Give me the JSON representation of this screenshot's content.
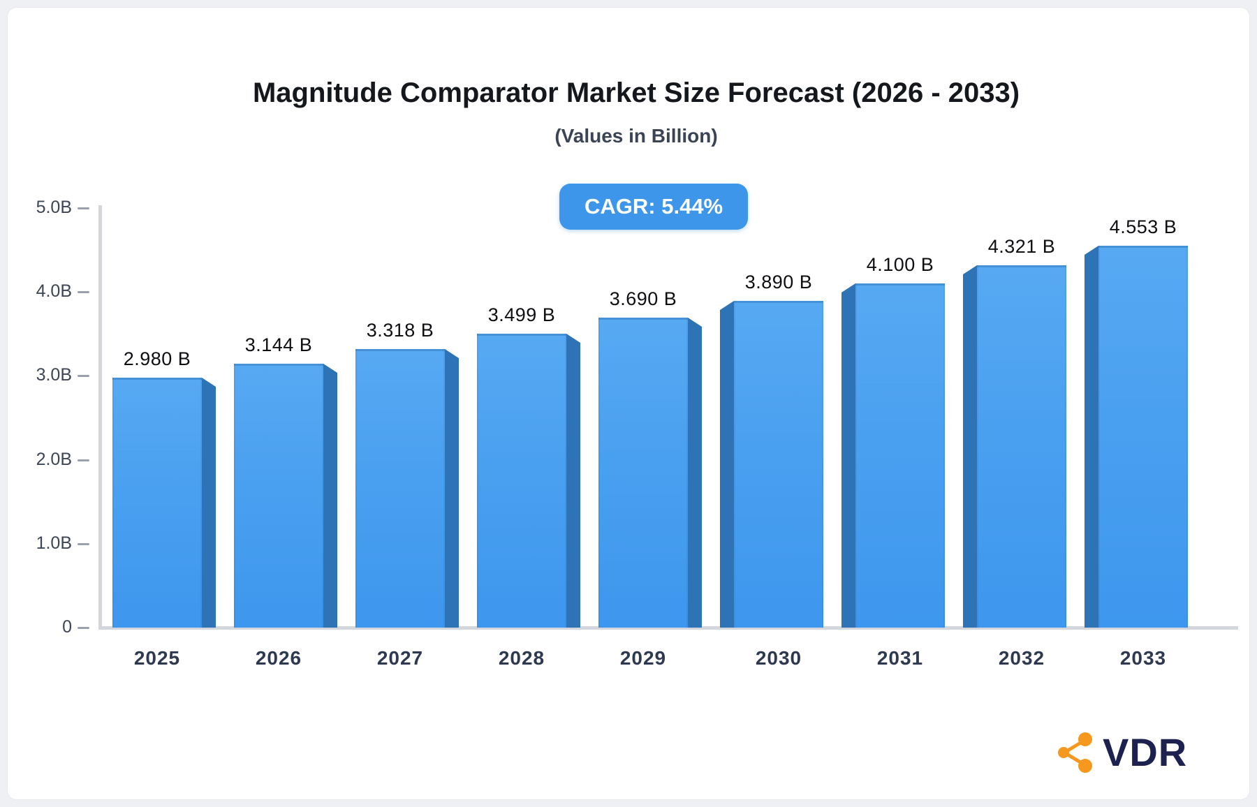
{
  "title": "Magnitude Comparator Market Size Forecast (2026 - 2033)",
  "subtitle": "(Values in Billion)",
  "badge": {
    "label": "CAGR: 5.44%"
  },
  "chart_data": {
    "type": "bar",
    "title": "Magnitude Comparator Market Size Forecast (2026 - 2033)",
    "subtitle": "(Values in Billion)",
    "cagr_label": "CAGR: 5.44%",
    "categories": [
      "2025",
      "2026",
      "2027",
      "2028",
      "2029",
      "2030",
      "2031",
      "2032",
      "2033"
    ],
    "values": [
      2.98,
      3.144,
      3.318,
      3.499,
      3.69,
      3.89,
      4.1,
      4.321,
      4.553
    ],
    "bar_labels": [
      "2.980 B",
      "3.144 B",
      "3.318 B",
      "3.499 B",
      "3.690 B",
      "3.890 B",
      "4.100 B",
      "4.321 B",
      "4.553 B"
    ],
    "y_ticks": [
      {
        "label": "5.0B",
        "value": 5.0
      },
      {
        "label": "4.0B",
        "value": 4.0
      },
      {
        "label": "3.0B",
        "value": 3.0
      },
      {
        "label": "2.0B",
        "value": 2.0
      },
      {
        "label": "1.0B",
        "value": 1.0
      },
      {
        "label": "0",
        "value": 0.0
      }
    ],
    "ylim": [
      0,
      5
    ],
    "grid": "off",
    "legend": "none",
    "unit": "Billion",
    "colors": {
      "bar_face_top": "#57a9f2",
      "bar_face_bottom": "#3e97ee",
      "bar_side": "#2d73b6",
      "axis": "#d3d6dc",
      "badge_background": "#3d96ea",
      "badge_text": "#ffffff"
    }
  },
  "logo": {
    "text": "VDR",
    "icon": "share-network-icon",
    "icon_color": "#f6981d",
    "text_color": "#1c2150"
  }
}
